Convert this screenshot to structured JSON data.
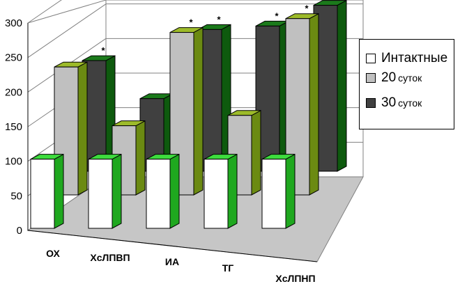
{
  "chart_data": {
    "type": "bar",
    "categories": [
      "ОХ",
      "ХсЛПВП",
      "ИА",
      "ТГ",
      "ХсЛПНП"
    ],
    "series": [
      {
        "name": "Интактные",
        "values": [
          100,
          100,
          100,
          100,
          100
        ],
        "color": "#ffffff",
        "side_color": "#1fa81f",
        "top_color": "#3ddc3d",
        "stars": [
          false,
          false,
          false,
          false,
          false
        ]
      },
      {
        "name": "20 суток",
        "values": [
          185,
          100,
          235,
          115,
          255
        ],
        "color": "#c0c0c0",
        "side_color": "#6b8a12",
        "top_color": "#9dbb2a",
        "stars": [
          false,
          false,
          true,
          false,
          true
        ]
      },
      {
        "name": "30 суток",
        "values": [
          160,
          105,
          205,
          210,
          240
        ],
        "color": "#404040",
        "side_color": "#0e5a0e",
        "top_color": "#1b7a1b",
        "stars": [
          true,
          false,
          true,
          true,
          true
        ]
      }
    ],
    "legend": [
      {
        "series": "Интактные",
        "label_main": "Интактные",
        "label_suffix": ""
      },
      {
        "series": "20 суток",
        "label_main": "20",
        "label_suffix": "суток"
      },
      {
        "series": "30 суток",
        "label_main": "30",
        "label_suffix": "суток"
      }
    ],
    "y_ticks": [
      "0",
      "50",
      "100",
      "150",
      "200",
      "250",
      "300"
    ],
    "ylim": [
      0,
      300
    ],
    "star_symbol": "*",
    "legend_position": "right",
    "grid": true,
    "three_d": true
  }
}
